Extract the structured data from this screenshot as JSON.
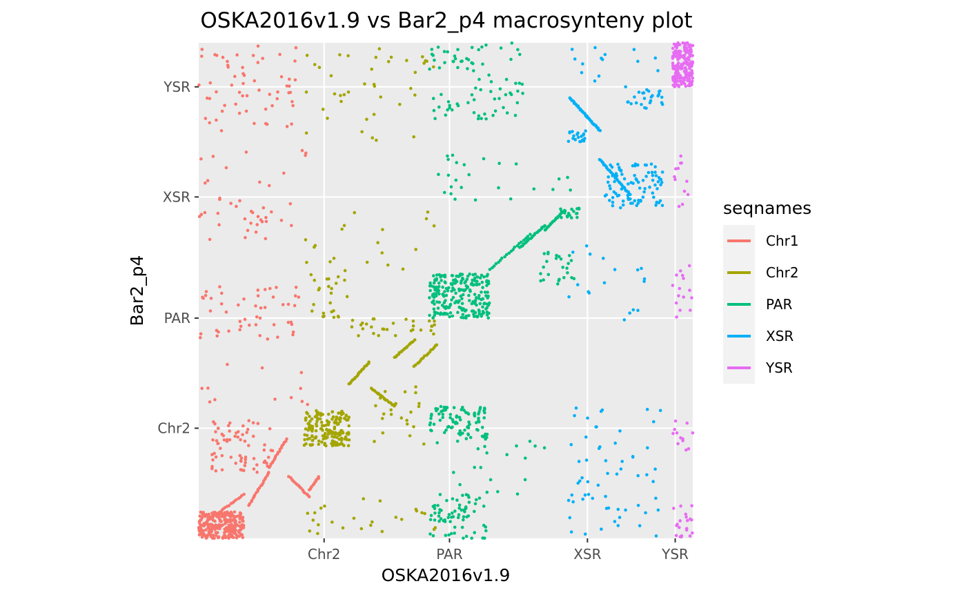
{
  "chart_data": {
    "type": "scatter",
    "title": "OSKA2016v1.9 vs Bar2_p4 macrosynteny plot",
    "xlabel": "OSKA2016v1.9",
    "ylabel": "Bar2_p4",
    "x_ticks": [
      {
        "label": "Chr2",
        "value": 0.5
      },
      {
        "label": "PAR",
        "value": 1.0
      },
      {
        "label": "XSR",
        "value": 1.55
      },
      {
        "label": "YSR",
        "value": 1.9
      }
    ],
    "y_ticks": [
      {
        "label": "Chr2",
        "value": 0.5
      },
      {
        "label": "PAR",
        "value": 1.0
      },
      {
        "label": "XSR",
        "value": 1.55
      },
      {
        "label": "YSR",
        "value": 2.05
      }
    ],
    "xlim": [
      0,
      1.97
    ],
    "ylim": [
      0,
      2.25
    ],
    "grid": true,
    "legend": {
      "title": "seqnames",
      "position": "right"
    },
    "series": [
      {
        "name": "Chr1",
        "color": "#F8766D"
      },
      {
        "name": "Chr2",
        "color": "#A3A500"
      },
      {
        "name": "PAR",
        "color": "#00BF7D"
      },
      {
        "name": "XSR",
        "color": "#00B0F6"
      },
      {
        "name": "YSR",
        "color": "#E76BF3"
      }
    ],
    "note": "Each series is a dense cloud of anchor points: dense diagonal blocks (Chr1 ~[0-0.2],[0-0.5]; Chr2 ~[0.5-0.65],[0.5-1.0]; PAR ~[1.0-1.25],[1.0-1.5]; XSR ~[1.55-1.88],[1.55-2.05]; YSR ~[1.9-1.97],[2.05-2.25]) with scattered off-diagonal points."
  }
}
